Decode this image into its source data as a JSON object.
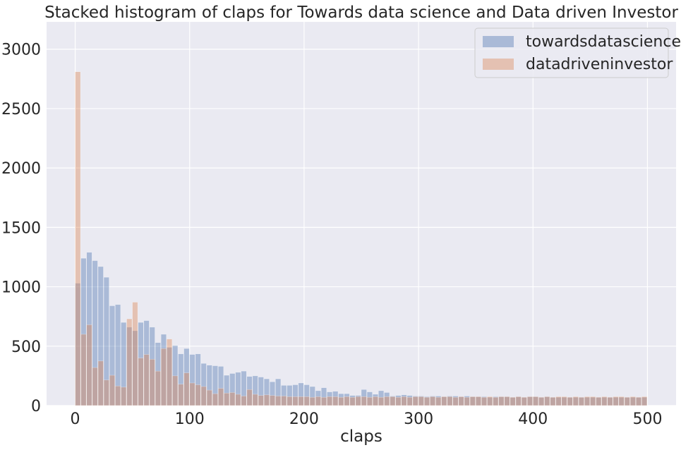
{
  "chart_data": {
    "type": "bar",
    "title": "Stacked histogram of claps for Towards data science and Data driven Investor",
    "xlabel": "claps",
    "ylabel": "",
    "xlim": [
      -25,
      525
    ],
    "ylim": [
      0,
      3230
    ],
    "xticks": [
      0,
      100,
      200,
      300,
      400,
      500
    ],
    "yticks": [
      0,
      500,
      1000,
      1500,
      2000,
      2500,
      3000
    ],
    "grid": true,
    "legend_position": "top-right",
    "bin_width": 5,
    "bin_start": 0,
    "series": [
      {
        "name": "towardsdatascience",
        "color": "#4c72b0",
        "values": [
          1030,
          1240,
          1290,
          1220,
          1170,
          1080,
          840,
          850,
          700,
          660,
          630,
          700,
          715,
          660,
          530,
          600,
          490,
          505,
          435,
          480,
          430,
          435,
          355,
          340,
          335,
          330,
          255,
          270,
          280,
          290,
          245,
          250,
          240,
          225,
          200,
          225,
          170,
          170,
          175,
          190,
          175,
          160,
          125,
          150,
          115,
          120,
          100,
          100,
          85,
          85,
          135,
          115,
          95,
          125,
          110,
          80,
          85,
          90,
          85,
          80,
          80,
          75,
          80,
          80,
          75,
          80,
          80,
          75,
          80,
          75,
          75,
          75,
          70,
          75,
          75,
          75,
          70,
          75,
          70,
          75,
          75,
          70,
          75,
          70,
          70,
          70,
          70,
          70,
          70,
          70,
          70,
          70,
          70,
          70,
          70,
          70,
          70,
          70,
          70,
          70
        ]
      },
      {
        "name": "datadriveninvestor",
        "color": "#dd8452",
        "values": [
          2810,
          600,
          680,
          320,
          375,
          215,
          255,
          165,
          155,
          730,
          870,
          400,
          430,
          390,
          290,
          480,
          560,
          250,
          180,
          275,
          190,
          175,
          160,
          130,
          100,
          145,
          105,
          110,
          95,
          80,
          135,
          95,
          85,
          90,
          85,
          80,
          80,
          75,
          75,
          75,
          75,
          70,
          75,
          70,
          75,
          75,
          70,
          75,
          70,
          75,
          75,
          70,
          75,
          70,
          75,
          75,
          70,
          75,
          70,
          75,
          75,
          70,
          75,
          70,
          75,
          75,
          70,
          75,
          70,
          75,
          75,
          70,
          75,
          70,
          75,
          75,
          70,
          75,
          70,
          75,
          75,
          70,
          75,
          70,
          75,
          75,
          70,
          75,
          70,
          75,
          75,
          70,
          75,
          70,
          75,
          75,
          70,
          75,
          70,
          75
        ]
      }
    ]
  }
}
